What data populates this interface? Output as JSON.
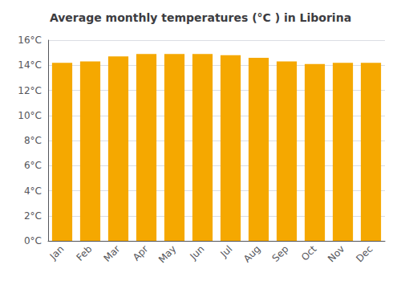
{
  "chart_data": {
    "type": "bar",
    "title": "Average monthly temperatures (°C ) in Liborina",
    "categories": [
      "Jan",
      "Feb",
      "Mar",
      "Apr",
      "May",
      "Jun",
      "Jul",
      "Aug",
      "Sep",
      "Oct",
      "Nov",
      "Dec"
    ],
    "values": [
      14.2,
      14.3,
      14.7,
      14.9,
      14.9,
      14.9,
      14.8,
      14.6,
      14.3,
      14.1,
      14.2,
      14.2
    ],
    "color": "#F5A800",
    "ylim": [
      0,
      16
    ],
    "yticks": [
      {
        "value": 0,
        "label": "0°C"
      },
      {
        "value": 2,
        "label": "2°C"
      },
      {
        "value": 4,
        "label": "4°C"
      },
      {
        "value": 6,
        "label": "6°C"
      },
      {
        "value": 8,
        "label": "8°C"
      },
      {
        "value": 10,
        "label": "10°C"
      },
      {
        "value": 12,
        "label": "12°C"
      },
      {
        "value": 14,
        "label": "14°C"
      },
      {
        "value": 16,
        "label": "16°C"
      }
    ],
    "grid": true
  }
}
